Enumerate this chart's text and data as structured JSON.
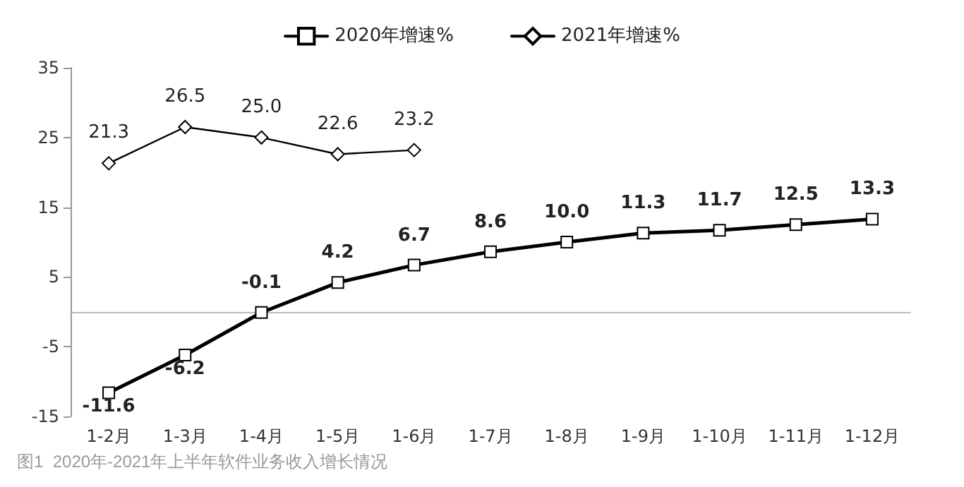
{
  "chart_data": {
    "type": "line",
    "categories": [
      "1-2月",
      "1-3月",
      "1-4月",
      "1-5月",
      "1-6月",
      "1-7月",
      "1-8月",
      "1-9月",
      "1-10月",
      "1-11月",
      "1-12月"
    ],
    "series": [
      {
        "name": "2020年增速%",
        "color": "#000000",
        "marker": "square",
        "values": [
          -11.6,
          -6.2,
          -0.1,
          4.2,
          6.7,
          8.6,
          10.0,
          11.3,
          11.7,
          12.5,
          13.3
        ],
        "value_labels": [
          "-11.6",
          "-6.2",
          "-0.1",
          "4.2",
          "6.7",
          "8.6",
          "10.0",
          "11.3",
          "11.7",
          "12.5",
          "13.3"
        ]
      },
      {
        "name": "2021年增速%",
        "color": "#000000",
        "marker": "diamond",
        "values": [
          21.3,
          26.5,
          25.0,
          22.6,
          23.2,
          null,
          null,
          null,
          null,
          null,
          null
        ],
        "value_labels": [
          "21.3",
          "26.5",
          "25.0",
          "22.6",
          "23.2",
          null,
          null,
          null,
          null,
          null,
          null
        ]
      }
    ],
    "ylim": [
      -15,
      35
    ],
    "yticks": [
      -15,
      -5,
      5,
      15,
      25,
      35
    ],
    "grid": false,
    "legend": "top",
    "line_style": "solid",
    "annotations": [
      "图1  2020年-2021年上半年软件业务收入增长情况"
    ]
  }
}
